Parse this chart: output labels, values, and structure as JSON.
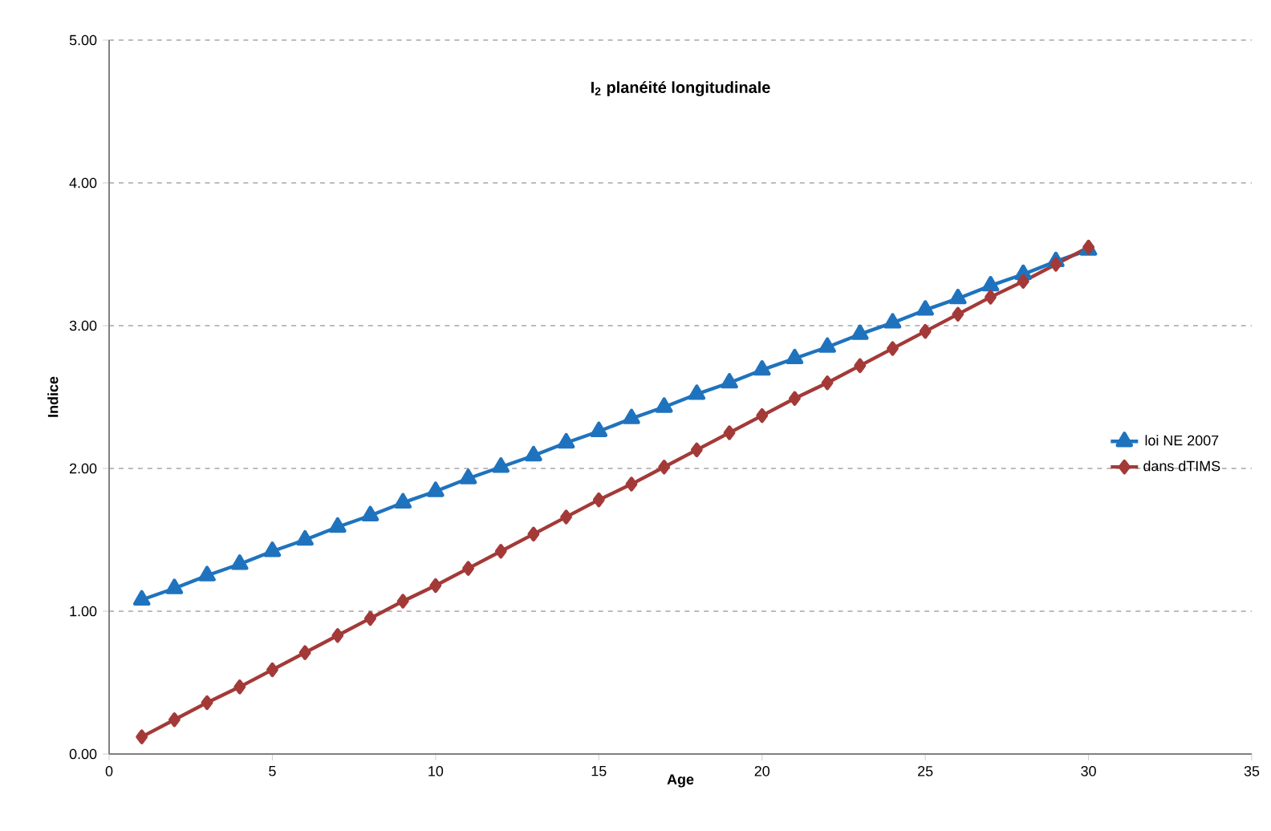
{
  "chart_data": {
    "type": "line",
    "title": "I$_{2}$ planéité longitudinale",
    "xlabel": "Age",
    "ylabel": "Indice",
    "x": [
      1,
      2,
      3,
      4,
      5,
      6,
      7,
      8,
      9,
      10,
      11,
      12,
      13,
      14,
      15,
      16,
      17,
      18,
      19,
      20,
      21,
      22,
      23,
      24,
      25,
      26,
      27,
      28,
      29,
      30
    ],
    "series": [
      {
        "name": "loi NE 2007",
        "color": "#1f73be",
        "marker": "triangle",
        "values": [
          1.08,
          1.16,
          1.25,
          1.33,
          1.42,
          1.5,
          1.59,
          1.67,
          1.76,
          1.84,
          1.93,
          2.01,
          2.09,
          2.18,
          2.26,
          2.35,
          2.43,
          2.52,
          2.6,
          2.69,
          2.77,
          2.85,
          2.94,
          3.02,
          3.11,
          3.19,
          3.28,
          3.36,
          3.45,
          3.53
        ]
      },
      {
        "name": "dans dTIMS",
        "color": "#a33a38",
        "marker": "diamond",
        "values": [
          0.12,
          0.24,
          0.36,
          0.47,
          0.59,
          0.71,
          0.83,
          0.95,
          1.07,
          1.18,
          1.3,
          1.42,
          1.54,
          1.66,
          1.78,
          1.89,
          2.01,
          2.13,
          2.25,
          2.37,
          2.49,
          2.6,
          2.72,
          2.84,
          2.96,
          3.08,
          3.2,
          3.31,
          3.43,
          3.55
        ]
      }
    ],
    "xlim": [
      0,
      35
    ],
    "xticks": [
      0,
      5,
      10,
      15,
      20,
      25,
      30,
      35
    ],
    "ylim": [
      0,
      5
    ],
    "yticks": [
      {
        "value": 0,
        "label": "0.00"
      },
      {
        "value": 1,
        "label": "1.00"
      },
      {
        "value": 2,
        "label": "2.00"
      },
      {
        "value": 3,
        "label": "3.00"
      },
      {
        "value": 4,
        "label": "4.00"
      },
      {
        "value": 5,
        "label": "5.00"
      }
    ],
    "grid": "y",
    "legend": "right",
    "line_style": "solid"
  }
}
